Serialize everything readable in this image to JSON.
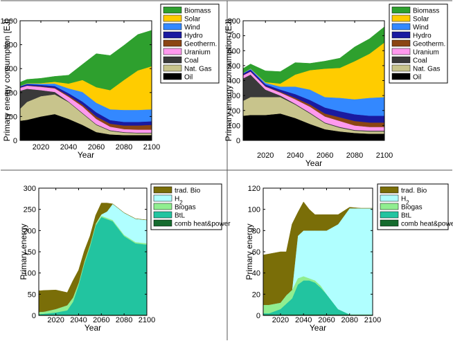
{
  "chart_data": [
    {
      "type": "area",
      "stacked": true,
      "ylabel": "Primary energy consumption [EJ]",
      "xlabel": "Year",
      "xlim": [
        2005,
        2100
      ],
      "ylim": [
        0,
        1000
      ],
      "xticks": [
        2020,
        2040,
        2060,
        2080,
        2100
      ],
      "yticks": [
        0,
        200,
        400,
        600,
        800,
        1000
      ],
      "legend": "top-right",
      "x": [
        2005,
        2010,
        2020,
        2030,
        2040,
        2050,
        2060,
        2070,
        2080,
        2090,
        2100
      ],
      "series": [
        {
          "name": "Oil",
          "color": "#000000",
          "values": [
            165,
            172,
            200,
            220,
            180,
            130,
            70,
            50,
            45,
            45,
            45
          ]
        },
        {
          "name": "Nat. Gas",
          "color": "#c8c48c",
          "values": [
            100,
            150,
            170,
            165,
            140,
            95,
            60,
            30,
            20,
            15,
            15
          ]
        },
        {
          "name": "Coal",
          "color": "#3a3a3a",
          "values": [
            150,
            110,
            50,
            20,
            5,
            5,
            5,
            5,
            5,
            5,
            5
          ]
        },
        {
          "name": "Uranium",
          "color": "#ff99ee",
          "values": [
            25,
            25,
            28,
            30,
            40,
            55,
            45,
            30,
            25,
            25,
            25
          ]
        },
        {
          "name": "Geotherm.",
          "color": "#8b4513",
          "values": [
            2,
            2,
            4,
            5,
            10,
            15,
            20,
            25,
            30,
            35,
            40
          ]
        },
        {
          "name": "Hydro",
          "color": "#1a1aa0",
          "values": [
            10,
            12,
            12,
            15,
            20,
            25,
            35,
            30,
            30,
            30,
            30
          ]
        },
        {
          "name": "Wind",
          "color": "#3388ff",
          "values": [
            3,
            5,
            10,
            20,
            40,
            80,
            80,
            90,
            100,
            100,
            100
          ]
        },
        {
          "name": "Solar",
          "color": "#ffcc00",
          "values": [
            1,
            2,
            5,
            15,
            40,
            100,
            130,
            160,
            250,
            330,
            360
          ]
        },
        {
          "name": "Biomass",
          "color": "#2ea02e",
          "values": [
            30,
            32,
            40,
            45,
            70,
            130,
            280,
            290,
            290,
            300,
            300
          ]
        }
      ]
    },
    {
      "type": "area",
      "stacked": true,
      "ylabel": "Primary energy consumption [EJ]",
      "xlabel": "Year",
      "xlim": [
        2005,
        2100
      ],
      "ylim": [
        0,
        800
      ],
      "xticks": [
        2020,
        2040,
        2060,
        2080,
        2100
      ],
      "yticks": [
        0,
        100,
        200,
        300,
        400,
        500,
        600,
        700,
        800
      ],
      "legend": "top-right",
      "x": [
        2005,
        2010,
        2020,
        2030,
        2040,
        2050,
        2060,
        2070,
        2080,
        2090,
        2100
      ],
      "series": [
        {
          "name": "Oil",
          "color": "#000000",
          "values": [
            165,
            170,
            170,
            180,
            150,
            110,
            75,
            60,
            50,
            45,
            45
          ]
        },
        {
          "name": "Nat. Gas",
          "color": "#c8c48c",
          "values": [
            100,
            120,
            120,
            110,
            90,
            70,
            40,
            25,
            15,
            15,
            15
          ]
        },
        {
          "name": "Coal",
          "color": "#3a3a3a",
          "values": [
            150,
            150,
            50,
            10,
            5,
            5,
            5,
            5,
            5,
            5,
            5
          ]
        },
        {
          "name": "Uranium",
          "color": "#ff99ee",
          "values": [
            20,
            20,
            20,
            20,
            30,
            40,
            40,
            40,
            30,
            25,
            25
          ]
        },
        {
          "name": "Geotherm.",
          "color": "#8b4513",
          "values": [
            2,
            2,
            3,
            5,
            10,
            15,
            20,
            25,
            30,
            30,
            30
          ]
        },
        {
          "name": "Hydro",
          "color": "#1a1aa0",
          "values": [
            10,
            12,
            12,
            15,
            25,
            30,
            40,
            40,
            45,
            45,
            45
          ]
        },
        {
          "name": "Wind",
          "color": "#3388ff",
          "values": [
            3,
            5,
            10,
            20,
            50,
            70,
            70,
            90,
            100,
            120,
            125
          ]
        },
        {
          "name": "Solar",
          "color": "#ffcc00",
          "values": [
            1,
            2,
            5,
            20,
            80,
            130,
            190,
            200,
            255,
            295,
            365
          ]
        },
        {
          "name": "Biomass",
          "color": "#2ea02e",
          "values": [
            30,
            30,
            75,
            80,
            80,
            45,
            50,
            65,
            95,
            100,
            105
          ]
        }
      ]
    },
    {
      "type": "area",
      "stacked": true,
      "ylabel": "Primary energy",
      "xlabel": "Year",
      "xlim": [
        2005,
        2100
      ],
      "ylim": [
        0,
        300
      ],
      "xticks": [
        2020,
        2040,
        2060,
        2080,
        2100
      ],
      "yticks": [
        0,
        50,
        100,
        150,
        200,
        250,
        300
      ],
      "legend": "top-right",
      "x": [
        2005,
        2010,
        2020,
        2030,
        2035,
        2040,
        2045,
        2050,
        2055,
        2060,
        2065,
        2070,
        2080,
        2090,
        2100
      ],
      "series": [
        {
          "name": "comb heat&power",
          "color": "#156b2e",
          "values": [
            2,
            2,
            2,
            2,
            2,
            2,
            2,
            2,
            2,
            2,
            2,
            2,
            2,
            2,
            2
          ]
        },
        {
          "name": "BtL",
          "color": "#22c4a0",
          "values": [
            1,
            2,
            5,
            10,
            30,
            70,
            120,
            160,
            210,
            230,
            225,
            220,
            185,
            168,
            165
          ]
        },
        {
          "name": "Biogas",
          "color": "#90ee90",
          "values": [
            5,
            5,
            8,
            12,
            10,
            5,
            5,
            5,
            3,
            3,
            3,
            3,
            3,
            3,
            3
          ]
        },
        {
          "name": "H_2",
          "color": "#b0ffff",
          "values": [
            0,
            0,
            0,
            0,
            0,
            0,
            0,
            0,
            1,
            3,
            15,
            38,
            52,
            55,
            55
          ]
        },
        {
          "name": "trad. Bio",
          "color": "#7a6e08",
          "values": [
            50,
            50,
            45,
            30,
            40,
            30,
            25,
            20,
            20,
            27,
            20,
            0,
            0,
            0,
            0
          ]
        }
      ]
    },
    {
      "type": "area",
      "stacked": true,
      "ylabel": "Primary energy",
      "xlabel": "Year",
      "xlim": [
        2005,
        2100
      ],
      "ylim": [
        0,
        120
      ],
      "xticks": [
        2020,
        2040,
        2060,
        2080,
        2100
      ],
      "yticks": [
        0,
        20,
        40,
        60,
        80,
        100,
        120
      ],
      "legend": "top-right",
      "x": [
        2005,
        2010,
        2020,
        2025,
        2030,
        2035,
        2040,
        2045,
        2050,
        2055,
        2060,
        2070,
        2080,
        2090,
        2100
      ],
      "series": [
        {
          "name": "comb heat&power",
          "color": "#156b2e",
          "values": [
            1,
            1,
            1,
            1,
            1,
            1,
            1,
            1,
            1,
            1,
            1,
            1,
            1,
            1,
            1
          ]
        },
        {
          "name": "BtL",
          "color": "#22c4a0",
          "values": [
            1,
            1,
            5,
            10,
            15,
            28,
            32,
            32,
            30,
            25,
            19,
            5,
            0,
            0,
            0
          ]
        },
        {
          "name": "Biogas",
          "color": "#90ee90",
          "values": [
            8,
            8,
            6,
            8,
            8,
            6,
            4,
            2,
            2,
            2,
            0,
            0,
            0,
            0,
            0
          ]
        },
        {
          "name": "H_2",
          "color": "#b0ffff",
          "values": [
            0,
            0,
            0,
            0,
            0,
            40,
            43,
            45,
            47,
            52,
            60,
            80,
            100,
            100,
            100
          ]
        },
        {
          "name": "trad. Bio",
          "color": "#7a6e08",
          "values": [
            47,
            48,
            48,
            41,
            62,
            22,
            27,
            20,
            15,
            15,
            15,
            9,
            1,
            0,
            0
          ]
        }
      ]
    }
  ]
}
